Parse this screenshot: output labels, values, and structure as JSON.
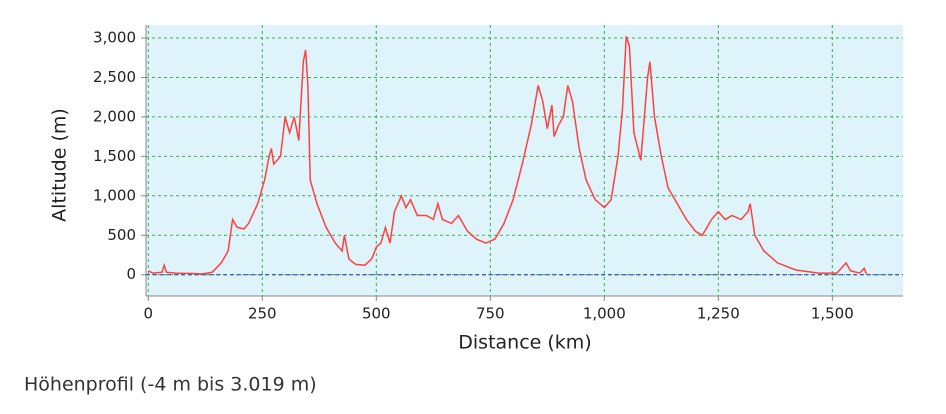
{
  "chart_data": {
    "type": "line",
    "xlabel": "Distance (km)",
    "ylabel": "Altitude (m)",
    "caption": "Höhenprofil (-4 m bis 3.019 m)",
    "xlim": [
      -5,
      1655
    ],
    "ylim": [
      -270,
      3165
    ],
    "xticks": [
      0,
      250,
      500,
      750,
      {
        "value": 1000,
        "label": "1,000"
      },
      {
        "value": 1250,
        "label": "1,250"
      },
      {
        "value": 1500,
        "label": "1,500"
      }
    ],
    "yticks": [
      0,
      500,
      {
        "value": 1000,
        "label": "1,000"
      },
      {
        "value": 1500,
        "label": "1,500"
      },
      {
        "value": 2000,
        "label": "2,000"
      },
      {
        "value": 2500,
        "label": "2,500"
      },
      {
        "value": 3000,
        "label": "3,000"
      }
    ],
    "grid": true,
    "series": [
      {
        "color": "#ff4040",
        "x": [
          0,
          10,
          30,
          35,
          40,
          60,
          120,
          140,
          160,
          175,
          185,
          195,
          210,
          220,
          240,
          255,
          265,
          270,
          275,
          290,
          300,
          310,
          320,
          330,
          340,
          345,
          350,
          355,
          370,
          390,
          410,
          425,
          430,
          440,
          455,
          475,
          490,
          500,
          510,
          520,
          530,
          540,
          555,
          565,
          575,
          590,
          610,
          625,
          635,
          645,
          665,
          680,
          690,
          700,
          720,
          740,
          760,
          780,
          800,
          820,
          840,
          855,
          865,
          875,
          885,
          890,
          900,
          910,
          920,
          930,
          945,
          960,
          980,
          1000,
          1015,
          1030,
          1040,
          1048,
          1055,
          1065,
          1080,
          1095,
          1100,
          1110,
          1125,
          1140,
          1160,
          1180,
          1200,
          1215,
          1235,
          1250,
          1265,
          1280,
          1300,
          1315,
          1320,
          1330,
          1350,
          1380,
          1420,
          1470,
          1510,
          1530,
          1540,
          1560,
          1570,
          1575
        ],
        "values": [
          50,
          20,
          30,
          120,
          30,
          20,
          10,
          30,
          150,
          300,
          700,
          600,
          580,
          650,
          900,
          1200,
          1500,
          1600,
          1400,
          1500,
          2000,
          1800,
          2000,
          1700,
          2700,
          2850,
          2400,
          1200,
          900,
          600,
          400,
          300,
          500,
          200,
          130,
          120,
          200,
          350,
          400,
          600,
          400,
          800,
          1000,
          850,
          950,
          750,
          750,
          700,
          900,
          700,
          650,
          750,
          650,
          550,
          450,
          400,
          450,
          650,
          950,
          1400,
          1900,
          2400,
          2200,
          1850,
          2150,
          1750,
          1900,
          2000,
          2400,
          2200,
          1600,
          1200,
          950,
          850,
          950,
          1500,
          2100,
          3020,
          2900,
          1800,
          1450,
          2500,
          2700,
          2000,
          1500,
          1100,
          900,
          700,
          550,
          500,
          700,
          800,
          700,
          750,
          700,
          800,
          900,
          500,
          300,
          150,
          60,
          20,
          20,
          150,
          50,
          20,
          80,
          10
        ]
      }
    ]
  }
}
